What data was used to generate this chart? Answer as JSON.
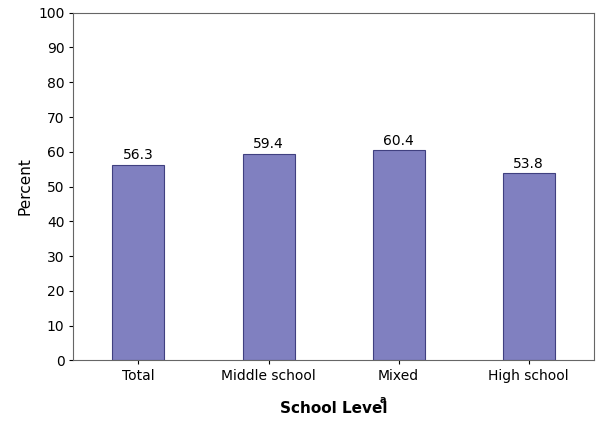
{
  "categories": [
    "Total",
    "Middle school",
    "Mixed",
    "High school"
  ],
  "values": [
    56.3,
    59.4,
    60.4,
    53.8
  ],
  "bar_color": "#8080c0",
  "bar_edgecolor": "#404080",
  "ylabel": "Percent",
  "xlabel": "School Level",
  "xlabel_superscript": "a",
  "ylim": [
    0,
    100
  ],
  "yticks": [
    0,
    10,
    20,
    30,
    40,
    50,
    60,
    70,
    80,
    90,
    100
  ],
  "bar_width": 0.4,
  "tick_fontsize": 10,
  "value_fontsize": 10,
  "axis_label_fontsize": 11,
  "background_color": "#ffffff"
}
